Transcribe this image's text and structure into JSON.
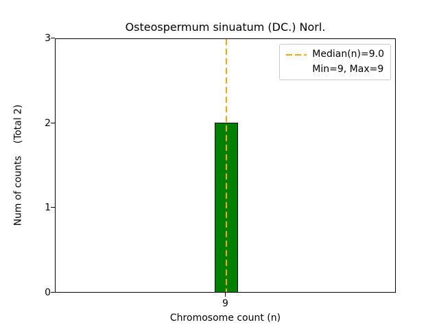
{
  "chart_data": {
    "type": "bar",
    "title": "Osteospermum sinuatum (DC.) Norl.",
    "xlabel": "Chromosome count (n)",
    "ylabel": "Num of counts    (Total 2)",
    "categories": [
      "9"
    ],
    "values": [
      2
    ],
    "ylim": [
      0,
      3
    ],
    "yticks": [
      0,
      1,
      2,
      3
    ],
    "grid": false,
    "legend_position": "upper right",
    "legend": [
      "Median(n)=9.0",
      "Min=9, Max=9"
    ],
    "median": 9.0,
    "min": 9,
    "max": 9,
    "total_counts": 2,
    "bar_color": "#008000",
    "bar_edge_color": "#000000",
    "median_line_color": "#FFA500"
  }
}
